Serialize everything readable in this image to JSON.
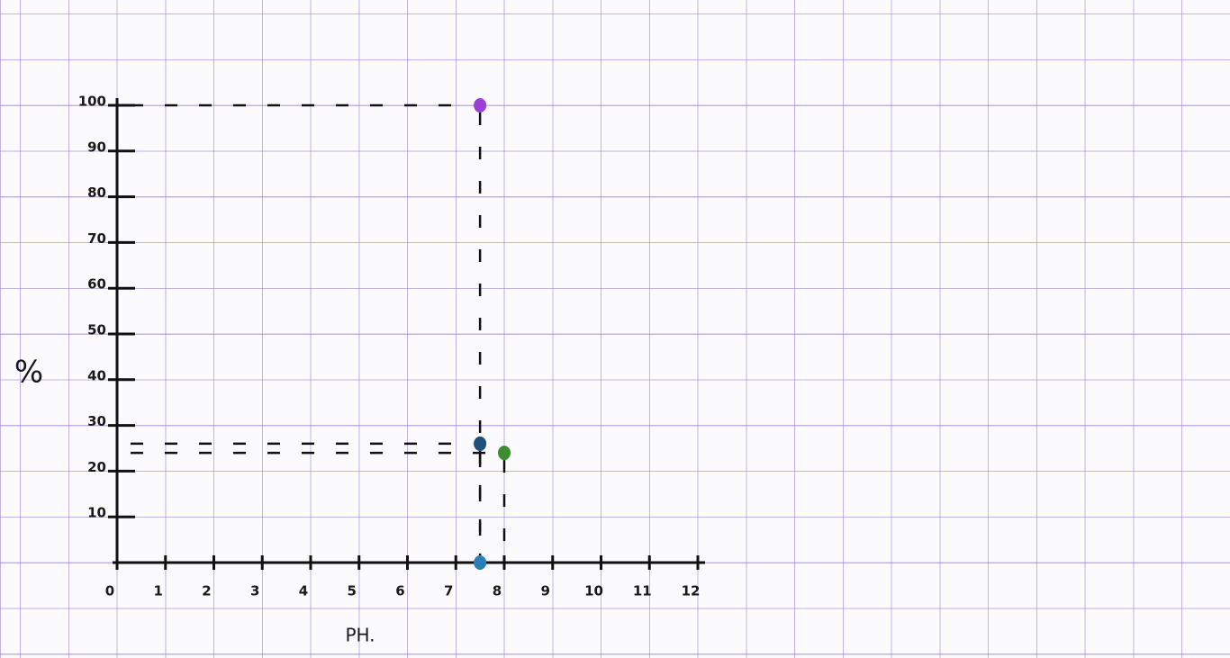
{
  "chart_data": {
    "type": "scatter",
    "x_label": "PH.",
    "y_label": "%",
    "x": [
      7.5,
      7.5,
      8,
      7.5
    ],
    "values": [
      100,
      26,
      24,
      0
    ],
    "colors": [
      "#9b3fd6",
      "#1f4f7a",
      "#3c8d2f",
      "#2a7fb8"
    ],
    "xlim": [
      0,
      12
    ],
    "ylim": [
      0,
      100
    ],
    "xticks": [
      0,
      1,
      2,
      3,
      4,
      5,
      6,
      7,
      8,
      9,
      10,
      11,
      12
    ],
    "yticks": [
      10,
      20,
      30,
      40,
      50,
      60,
      70,
      80,
      90,
      100
    ]
  }
}
